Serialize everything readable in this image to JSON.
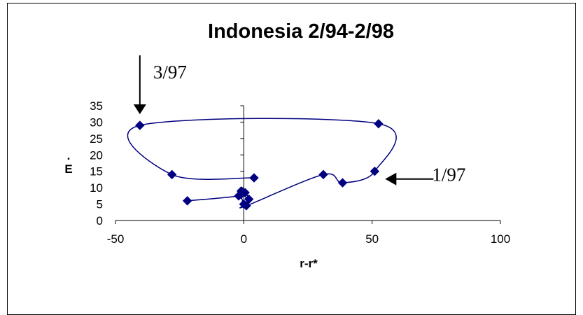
{
  "chart_data": {
    "type": "scatter",
    "title": "Indonesia 2/94-2/98",
    "xlabel": "r-r*",
    "ylabel": "E",
    "ylabel_mark": ".",
    "xlim": [
      -50,
      100
    ],
    "ylim": [
      0,
      35
    ],
    "xticks": [
      -50,
      0,
      50,
      100
    ],
    "yticks": [
      0,
      5,
      10,
      15,
      20,
      25,
      30,
      35
    ],
    "grid": false,
    "legend": "none",
    "series_color": "#000080",
    "marker": "diamond",
    "connected": true,
    "points": [
      {
        "x": -22,
        "y": 6
      },
      {
        "x": -2,
        "y": 7.5
      },
      {
        "x": -1,
        "y": 9
      },
      {
        "x": 0.5,
        "y": 8.5
      },
      {
        "x": 2,
        "y": 6.5
      },
      {
        "x": -1,
        "y": 8
      },
      {
        "x": 0,
        "y": 5
      },
      {
        "x": 1,
        "y": 4.5
      },
      {
        "x": 31,
        "y": 14
      },
      {
        "x": 38.5,
        "y": 11.5
      },
      {
        "x": 51,
        "y": 15
      },
      {
        "x": 52.5,
        "y": 29.5
      },
      {
        "x": -40.5,
        "y": 29
      },
      {
        "x": -28,
        "y": 14
      },
      {
        "x": 4,
        "y": 13
      }
    ],
    "annotations": [
      {
        "text": "3/97",
        "arrow": "down",
        "points_to": {
          "x": -40.5,
          "y": 29
        }
      },
      {
        "text": "1/97",
        "arrow": "left",
        "points_to": {
          "x": 51,
          "y": 15
        }
      }
    ]
  }
}
